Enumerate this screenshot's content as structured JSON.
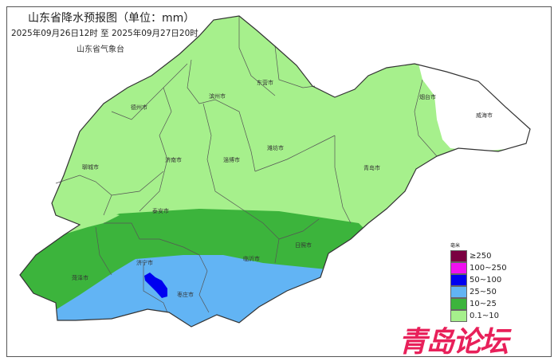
{
  "header": {
    "title": "山东省降水预报图（单位：mm）",
    "period": "2025年09月26日12时  至  2025年09月27日20时",
    "issuer": "山东省气象台"
  },
  "cities": {
    "dezhou": "德州市",
    "binzhou": "滨州市",
    "dongying": "东营市",
    "yantai": "烟台市",
    "weihai": "威海市",
    "liaocheng": "聊城市",
    "jinan": "济南市",
    "zibo": "淄博市",
    "weifang": "潍坊市",
    "qingdao": "青岛市",
    "taian": "泰安市",
    "rizhao": "日照市",
    "linyi": "临沂市",
    "jining": "济宁市",
    "heze": "菏泽市",
    "zaozhuang": "枣庄市"
  },
  "legend": {
    "unit": "毫米",
    "items": [
      {
        "label": "≥250",
        "color": "#7a0040"
      },
      {
        "label": "100~250",
        "color": "#f010f0"
      },
      {
        "label": "50~100",
        "color": "#0000f0"
      },
      {
        "label": "25~50",
        "color": "#62b4f4"
      },
      {
        "label": "10~25",
        "color": "#3cb43c"
      },
      {
        "label": "0.1~10",
        "color": "#a6f08c"
      }
    ]
  },
  "watermark": "青岛论坛"
}
